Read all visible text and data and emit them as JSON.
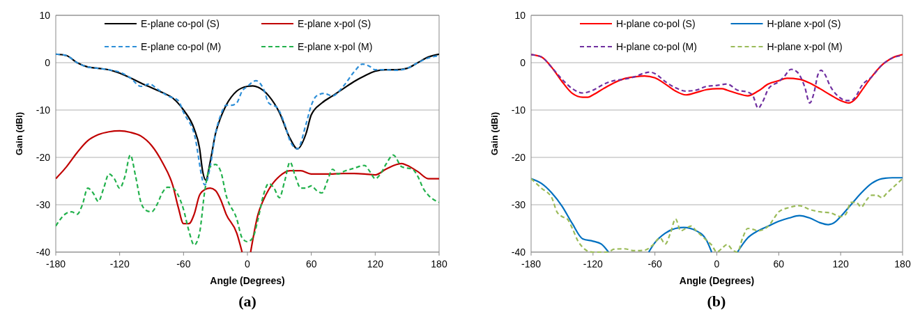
{
  "chart_data": [
    {
      "type": "line",
      "title": "(a)",
      "xlabel": "Angle (Degrees)",
      "ylabel": "Gain (dBi)",
      "xlim": [
        -180,
        180
      ],
      "xticks": [
        -180,
        -120,
        -60,
        0,
        60,
        120,
        180
      ],
      "ylim": [
        -40,
        10
      ],
      "yticks": [
        -40,
        -30,
        -20,
        -10,
        0,
        10
      ],
      "grid": "y",
      "legend": "top",
      "series": [
        {
          "name": "E-plane co-pol (S)",
          "color": "#000000",
          "line_style": "solid",
          "x": [
            -180,
            -170,
            -160,
            -150,
            -140,
            -130,
            -120,
            -110,
            -100,
            -90,
            -80,
            -70,
            -60,
            -50,
            -45,
            -42,
            -39,
            -35,
            -30,
            -25,
            -20,
            -10,
            0,
            5,
            10,
            20,
            30,
            40,
            47,
            55,
            60,
            70,
            80,
            90,
            100,
            110,
            120,
            130,
            140,
            150,
            160,
            170,
            180
          ],
          "values": [
            1.8,
            1.5,
            0,
            -0.9,
            -1.2,
            -1.5,
            -2.2,
            -3.2,
            -4.3,
            -5.3,
            -6.3,
            -7.5,
            -10,
            -14,
            -18,
            -23,
            -24.8,
            -21,
            -15,
            -11.5,
            -9,
            -6,
            -5,
            -4.9,
            -5.2,
            -7,
            -10.5,
            -16,
            -18.2,
            -15,
            -11,
            -8.5,
            -7,
            -5.5,
            -4,
            -2.8,
            -1.8,
            -1.5,
            -1.5,
            -1.2,
            0,
            1.2,
            1.8
          ]
        },
        {
          "name": "E-plane x-pol (S)",
          "color": "#c00000",
          "line_style": "solid",
          "x": [
            -180,
            -170,
            -160,
            -150,
            -140,
            -130,
            -120,
            -110,
            -100,
            -90,
            -80,
            -70,
            -65,
            -60,
            -55,
            -50,
            -45,
            -40,
            -35,
            -30,
            -25,
            -20,
            -10,
            -5,
            -1,
            3,
            10,
            15,
            20,
            30,
            40,
            50,
            60,
            70,
            80,
            90,
            100,
            110,
            120,
            130,
            140,
            145,
            150,
            160,
            170,
            180
          ],
          "values": [
            -24.5,
            -22,
            -19,
            -16.5,
            -15.2,
            -14.6,
            -14.4,
            -14.7,
            -15.5,
            -17.5,
            -21,
            -26,
            -30.5,
            -34,
            -34,
            -32,
            -28,
            -26.8,
            -26.5,
            -27,
            -29,
            -32,
            -36,
            -40,
            null,
            -40,
            -32,
            -29,
            -26.8,
            -24,
            -22.8,
            -22.8,
            -23.5,
            -23.5,
            -23.5,
            -23.4,
            -23.4,
            -23.5,
            -23.7,
            -22.5,
            -21.5,
            -21.3,
            -21.7,
            -23,
            -24.5,
            -24.5
          ]
        },
        {
          "name": "E-plane co-pol (M)",
          "color": "#2e8fd8",
          "line_style": "dashed",
          "x": [
            -180,
            -170,
            -160,
            -150,
            -140,
            -130,
            -120,
            -110,
            -100,
            -92,
            -85,
            -75,
            -65,
            -60,
            -50,
            -40,
            -35,
            -30,
            -25,
            -20,
            -15,
            -10,
            -5,
            0,
            8,
            15,
            20,
            28,
            35,
            40,
            47,
            55,
            60,
            65,
            72,
            80,
            90,
            100,
            108,
            115,
            120,
            130,
            140,
            150,
            160,
            170,
            180
          ],
          "values": [
            1.8,
            1.5,
            0,
            -0.9,
            -1.2,
            -1.5,
            -2,
            -3.2,
            -5,
            -4.5,
            -5.5,
            -7,
            -8,
            -10.5,
            -15,
            -25.8,
            -22,
            -15,
            -11,
            -9,
            -9,
            -8.5,
            -6,
            -5,
            -3.8,
            -5.5,
            -8.5,
            -9.5,
            -13,
            -16.5,
            -18.2,
            -13,
            -9,
            -7,
            -6.5,
            -7,
            -5,
            -2,
            -0.3,
            -0.8,
            -1.5,
            -1.5,
            -1.6,
            -1.2,
            0,
            1,
            1.5
          ]
        },
        {
          "name": "E-plane x-pol (M)",
          "color": "#22b14c",
          "line_style": "dashed",
          "x": [
            -180,
            -170,
            -165,
            -160,
            -155,
            -150,
            -145,
            -140,
            -135,
            -130,
            -125,
            -120,
            -115,
            -110,
            -105,
            -100,
            -95,
            -90,
            -85,
            -80,
            -75,
            -70,
            -65,
            -60,
            -55,
            -50,
            -45,
            -40,
            -35,
            -30,
            -25,
            -20,
            -10,
            -5,
            0,
            5,
            10,
            15,
            20,
            25,
            30,
            35,
            40,
            45,
            50,
            55,
            60,
            65,
            70,
            75,
            80,
            85,
            90,
            100,
            110,
            115,
            120,
            125,
            130,
            137,
            145,
            155,
            160,
            165,
            170,
            180
          ],
          "values": [
            -34.5,
            -31.8,
            -31.5,
            -32,
            -30,
            -26.5,
            -27.5,
            -29.3,
            -26.5,
            -23.5,
            -24.5,
            -26.5,
            -24,
            -19.5,
            -24,
            -29.5,
            -31.2,
            -31.5,
            -30,
            -27.5,
            -26.3,
            -26.5,
            -28,
            -31,
            -35.5,
            -38.5,
            -36,
            -27,
            -22,
            -21.5,
            -23,
            -28,
            -33,
            -37,
            -37.8,
            -37,
            -33,
            -28,
            -25.5,
            -26.5,
            -28.5,
            -25,
            -21,
            -24,
            -26.5,
            -26.5,
            -26,
            -27,
            -27.5,
            -25,
            -22.5,
            -23.5,
            -23,
            -22.3,
            -21.7,
            -23,
            -24.5,
            -23.5,
            -21.5,
            -19.5,
            -22,
            -22.5,
            -24,
            -26.5,
            -28,
            -29.5
          ]
        }
      ]
    },
    {
      "type": "line",
      "title": "(b)",
      "xlabel": "Angle (Degrees)",
      "ylabel": "Gain (dBi)",
      "xlim": [
        -180,
        180
      ],
      "xticks": [
        -180,
        -120,
        -60,
        0,
        60,
        120,
        180
      ],
      "ylim": [
        -40,
        10
      ],
      "yticks": [
        -40,
        -30,
        -20,
        -10,
        0,
        10
      ],
      "grid": "y",
      "legend": "top",
      "series": [
        {
          "name": "H-plane co-pol (S)",
          "color": "#ff0000",
          "line_style": "solid",
          "x": [
            -180,
            -170,
            -160,
            -150,
            -140,
            -130,
            -125,
            -120,
            -110,
            -100,
            -90,
            -80,
            -70,
            -60,
            -50,
            -40,
            -30,
            -20,
            -10,
            0,
            5,
            10,
            20,
            30,
            40,
            50,
            60,
            68,
            80,
            90,
            100,
            110,
            120,
            128,
            135,
            140,
            150,
            160,
            170,
            180
          ],
          "values": [
            1.7,
            1.2,
            -1,
            -4,
            -6.5,
            -7.3,
            -7.3,
            -6.8,
            -5.5,
            -4.3,
            -3.4,
            -3,
            -2.8,
            -3.2,
            -4.5,
            -6,
            -6.8,
            -6.3,
            -5.7,
            -5.5,
            -5.5,
            -5.8,
            -6.5,
            -7,
            -6,
            -4.5,
            -3.8,
            -3.3,
            -3.5,
            -4.3,
            -5.5,
            -6.8,
            -8,
            -8.5,
            -7.5,
            -6,
            -3,
            -0.5,
            1,
            1.7
          ]
        },
        {
          "name": "H-plane x-pol (S)",
          "color": "#0070c0",
          "line_style": "solid",
          "x": [
            -180,
            -170,
            -160,
            -150,
            -140,
            -130,
            -120,
            -112,
            -105,
            -85,
            -66,
            -60,
            -50,
            -40,
            -32,
            -20,
            -10,
            -5,
            8,
            20,
            30,
            40,
            50,
            60,
            70,
            80,
            90,
            100,
            108,
            115,
            120,
            130,
            140,
            150,
            160,
            170,
            180
          ],
          "values": [
            -24.5,
            -25.5,
            -27.5,
            -30.3,
            -34,
            -37.2,
            -37.7,
            -38.3,
            -40,
            null,
            -40,
            -38,
            -36,
            -35,
            -34.8,
            -35.5,
            -37.5,
            -40,
            null,
            -40,
            -37,
            -35.5,
            -34.5,
            -33.5,
            -32.8,
            -32.3,
            -32.8,
            -33.8,
            -34.2,
            -33.6,
            -32.5,
            -30,
            -27.5,
            -25.5,
            -24.5,
            -24.3,
            -24.3
          ]
        },
        {
          "name": "H-plane co-pol (M)",
          "color": "#7030a0",
          "line_style": "dashed",
          "x": [
            -180,
            -170,
            -160,
            -150,
            -140,
            -130,
            -120,
            -110,
            -100,
            -90,
            -80,
            -70,
            -65,
            -60,
            -50,
            -40,
            -30,
            -20,
            -10,
            0,
            10,
            20,
            30,
            35,
            40,
            45,
            50,
            60,
            65,
            72,
            78,
            85,
            90,
            94,
            98,
            101,
            104,
            110,
            120,
            125,
            130,
            135,
            140,
            150,
            160,
            170,
            180
          ],
          "values": [
            1.7,
            1.2,
            -1,
            -3.5,
            -5.5,
            -6.4,
            -5.8,
            -4.6,
            -3.8,
            -3.5,
            -3,
            -2.2,
            -2,
            -2.3,
            -4,
            -5.3,
            -6,
            -5.8,
            -5,
            -4.8,
            -4.5,
            -5.8,
            -6.2,
            -7,
            -9.6,
            -8,
            -5.5,
            -4,
            -3,
            -1.4,
            -2,
            -5,
            -8.5,
            -6.5,
            -2.5,
            -1.6,
            -2.2,
            -5,
            -7.5,
            -8,
            -8,
            -7,
            -5,
            -3,
            -0.5,
            1,
            1.5
          ]
        },
        {
          "name": "H-plane x-pol (M)",
          "color": "#9bbb59",
          "line_style": "dashed",
          "x": [
            -180,
            -170,
            -160,
            -155,
            -150,
            -145,
            -140,
            -135,
            -130,
            -125,
            -120,
            -105,
            -100,
            -90,
            -80,
            -70,
            -62,
            -55,
            -50,
            -45,
            -40,
            -35,
            -30,
            -25,
            -20,
            -15,
            -10,
            -5,
            0,
            5,
            10,
            15,
            20,
            25,
            30,
            35,
            40,
            50,
            55,
            60,
            70,
            80,
            90,
            100,
            110,
            120,
            125,
            130,
            135,
            140,
            145,
            150,
            155,
            160,
            165,
            170,
            180
          ],
          "values": [
            -24.5,
            -26.5,
            -28.5,
            -31.5,
            -32.5,
            -33,
            -35,
            -37.5,
            -39,
            -39.8,
            -40,
            -40,
            -39.4,
            -39.3,
            -39.7,
            -39.6,
            -38.5,
            -37,
            -38.3,
            -36,
            -33,
            -35.5,
            -35,
            -34.5,
            -35.5,
            -36.5,
            -37.5,
            -38.5,
            -40,
            -39.2,
            -38.4,
            -39.5,
            -40,
            -37,
            -35,
            -35.2,
            -35.5,
            -34.5,
            -33,
            -31.5,
            -30.6,
            -30.2,
            -31,
            -31.5,
            -31.7,
            -32.5,
            -32,
            -29.5,
            -29.5,
            -30.5,
            -29,
            -28,
            -28,
            -28.5,
            -27.5,
            -26.5,
            -24.5
          ]
        }
      ]
    }
  ]
}
